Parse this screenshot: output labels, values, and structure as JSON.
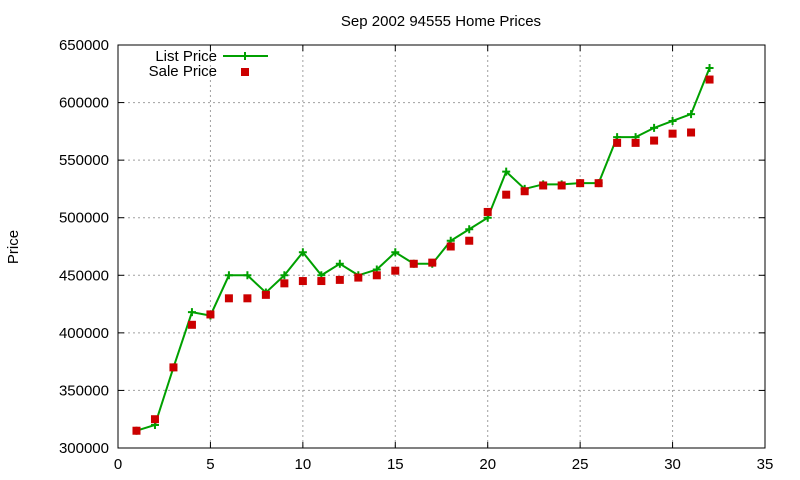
{
  "chart_data": {
    "type": "line",
    "title": "Sep 2002 94555 Home Prices",
    "xlabel": "",
    "ylabel": "Price",
    "xlim": [
      0,
      35
    ],
    "ylim": [
      300000,
      650000
    ],
    "xticks": [
      0,
      5,
      10,
      15,
      20,
      25,
      30,
      35
    ],
    "yticks": [
      300000,
      350000,
      400000,
      450000,
      500000,
      550000,
      600000,
      650000
    ],
    "grid": true,
    "legend_position": "top-left",
    "series": [
      {
        "name": "List Price",
        "style": "line-with-plus-markers",
        "color": "#00a000",
        "x": [
          1,
          2,
          3,
          4,
          5,
          6,
          7,
          8,
          9,
          10,
          11,
          12,
          13,
          14,
          15,
          16,
          17,
          18,
          19,
          20,
          21,
          22,
          23,
          24,
          25,
          26,
          27,
          28,
          29,
          30,
          31,
          32
        ],
        "values": [
          315000,
          320000,
          370000,
          418000,
          415000,
          450000,
          450000,
          435000,
          450000,
          470000,
          450000,
          460000,
          450000,
          455000,
          470000,
          460000,
          460000,
          480000,
          490000,
          500000,
          540000,
          525000,
          529000,
          529000,
          530000,
          530000,
          570000,
          570000,
          578000,
          584000,
          590000,
          630000
        ]
      },
      {
        "name": "Sale Price",
        "style": "square-markers",
        "color": "#cc0000",
        "x": [
          1,
          2,
          3,
          4,
          5,
          6,
          7,
          8,
          9,
          10,
          11,
          12,
          13,
          14,
          15,
          16,
          17,
          18,
          19,
          20,
          21,
          22,
          23,
          24,
          25,
          26,
          27,
          28,
          29,
          30,
          31,
          32
        ],
        "values": [
          315000,
          325000,
          370000,
          407000,
          416000,
          430000,
          430000,
          433000,
          443000,
          445000,
          445000,
          446000,
          448000,
          450000,
          454000,
          460000,
          461000,
          475000,
          480000,
          505000,
          520000,
          523000,
          528000,
          528000,
          530000,
          530000,
          565000,
          565000,
          567000,
          573000,
          574000,
          620000
        ]
      }
    ]
  }
}
